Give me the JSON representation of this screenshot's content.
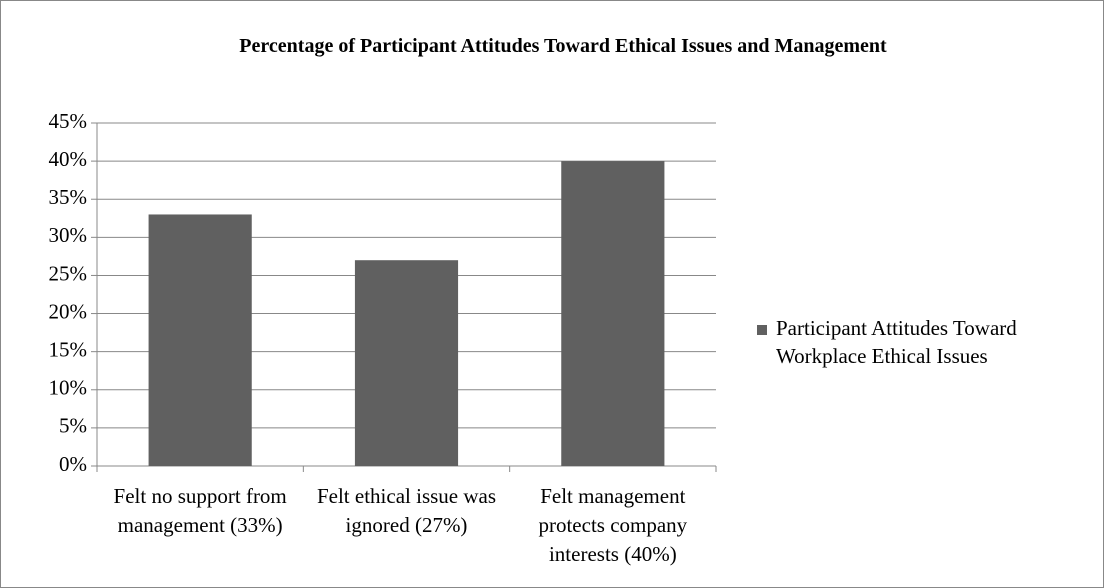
{
  "chart_data": {
    "type": "bar",
    "title": "Percentage of Participant Attitudes Toward Ethical Issues and Management",
    "categories": [
      "Felt no support from management (33%)",
      "Felt ethical issue was ignored (27%)",
      "Felt management protects company interests (40%)"
    ],
    "series": [
      {
        "name": "Participant Attitudes Toward Workplace Ethical Issues",
        "color": "#606060",
        "values": [
          33,
          27,
          40
        ]
      }
    ],
    "ylim": [
      0,
      45
    ],
    "yticks": [
      {
        "value": 0,
        "label": "0%"
      },
      {
        "value": 5,
        "label": "5%"
      },
      {
        "value": 10,
        "label": "10%"
      },
      {
        "value": 15,
        "label": "15%"
      },
      {
        "value": 20,
        "label": "20%"
      },
      {
        "value": 25,
        "label": "25%"
      },
      {
        "value": 30,
        "label": "30%"
      },
      {
        "value": 35,
        "label": "35%"
      },
      {
        "value": 40,
        "label": "40%"
      },
      {
        "value": 45,
        "label": "45%"
      }
    ],
    "grid": true,
    "legend": "right"
  }
}
